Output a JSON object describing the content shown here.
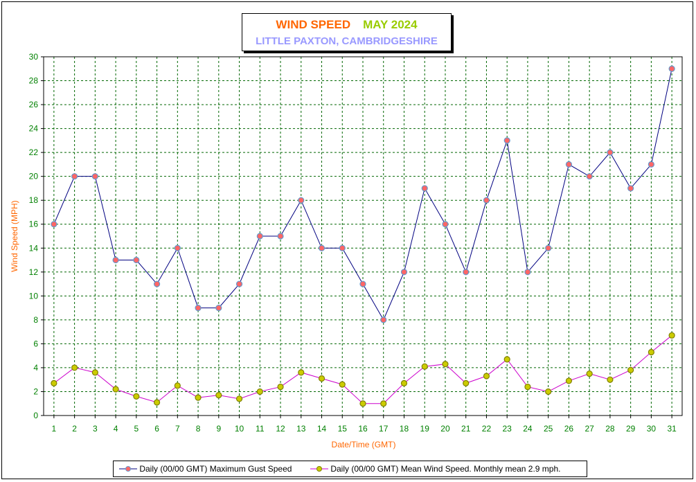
{
  "title": "WIND SPEED",
  "period": "MAY 2024",
  "subtitle": "LITTLE PAXTON, CAMBRIDGESHIRE",
  "chart_data": {
    "type": "line",
    "title": "WIND SPEED    MAY 2024",
    "subtitle": "LITTLE PAXTON, CAMBRIDGESHIRE",
    "xlabel": "Date/Time (GMT)",
    "ylabel": "Wind Speed (MPH)",
    "ylim": [
      0,
      30
    ],
    "yticks": [
      0,
      2,
      4,
      6,
      8,
      10,
      12,
      14,
      16,
      18,
      20,
      22,
      24,
      26,
      28,
      30
    ],
    "grid": true,
    "legend_position": "bottom",
    "categories": [
      "1",
      "2",
      "3",
      "4",
      "5",
      "6",
      "7",
      "8",
      "9",
      "10",
      "11",
      "12",
      "13",
      "14",
      "15",
      "16",
      "17",
      "18",
      "19",
      "20",
      "21",
      "22",
      "23",
      "24",
      "25",
      "26",
      "27",
      "28",
      "29",
      "30",
      "31"
    ],
    "series": [
      {
        "name": "Daily (00/00 GMT) Maximum Gust Speed",
        "line_color": "#000080",
        "marker_color": "#ff6666",
        "marker_edge": "#6699cc",
        "values": [
          16,
          20,
          20,
          13,
          13,
          11,
          14,
          9,
          9,
          11,
          15,
          15,
          18,
          14,
          14,
          11,
          8,
          12,
          19,
          16,
          12,
          18,
          23,
          12,
          14,
          21,
          20,
          22,
          19,
          21,
          29
        ]
      },
      {
        "name": "Daily (00/00 GMT) Mean Wind Speed. Monthly mean 2.9 mph.",
        "line_color": "#cc00cc",
        "marker_color": "#cccc00",
        "marker_edge": "#808000",
        "values": [
          2.7,
          4.0,
          3.6,
          2.2,
          1.6,
          1.1,
          2.5,
          1.5,
          1.7,
          1.4,
          2.0,
          2.4,
          3.6,
          3.1,
          2.6,
          1.0,
          1.0,
          2.7,
          4.1,
          4.3,
          2.7,
          3.3,
          4.7,
          2.4,
          2.0,
          2.9,
          3.5,
          3.0,
          3.8,
          5.3,
          6.7
        ]
      }
    ]
  },
  "colors": {
    "axis_tick_text": "#008000",
    "axis_label_text": "#ff6600",
    "grid": "#006600"
  }
}
